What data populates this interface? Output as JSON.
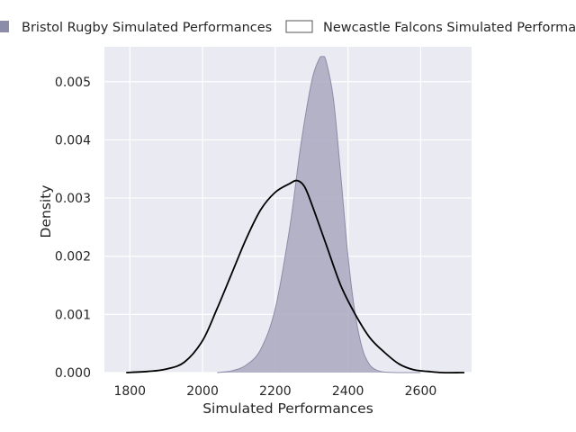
{
  "chart_data": {
    "type": "area",
    "title": "",
    "xlabel": "Simulated Performances",
    "ylabel": "Density",
    "xlim": [
      1730,
      2740
    ],
    "ylim": [
      0,
      0.0056
    ],
    "xticks": [
      1800,
      2000,
      2200,
      2400,
      2600
    ],
    "yticks": [
      0.0,
      0.001,
      0.002,
      0.003,
      0.004,
      0.005
    ],
    "ytick_labels": [
      "0.000",
      "0.001",
      "0.002",
      "0.003",
      "0.004",
      "0.005"
    ],
    "grid": true,
    "legend_position": "top",
    "colors": {
      "plot_background": "#eaeaf2",
      "grid": "#ffffff",
      "bristol_fill": "#a9a8bf",
      "bristol_line": "#8d8ca8",
      "newcastle_line": "#000000"
    },
    "series": [
      {
        "name": "Bristol Rugby Simulated Performances",
        "style": "filled",
        "x": [
          2040,
          2080,
          2120,
          2160,
          2200,
          2240,
          2270,
          2300,
          2320,
          2330,
          2340,
          2360,
          2380,
          2400,
          2420,
          2440,
          2460,
          2480,
          2500,
          2540,
          2600
        ],
        "y": [
          0.0,
          3e-05,
          0.00013,
          0.0004,
          0.0011,
          0.0025,
          0.0039,
          0.005,
          0.00538,
          0.00543,
          0.00535,
          0.0047,
          0.0034,
          0.002,
          0.001,
          0.0004,
          0.00013,
          4e-05,
          1e-05,
          0.0,
          0.0
        ]
      },
      {
        "name": "Newcastle Falcons Simulated Performances",
        "style": "line",
        "x": [
          1790,
          1850,
          1900,
          1950,
          2000,
          2040,
          2080,
          2120,
          2160,
          2200,
          2240,
          2260,
          2280,
          2300,
          2340,
          2380,
          2420,
          2460,
          2500,
          2540,
          2580,
          2620,
          2660,
          2720
        ],
        "y": [
          0.0,
          2e-05,
          6e-05,
          0.00018,
          0.00055,
          0.0011,
          0.0017,
          0.0023,
          0.0028,
          0.0031,
          0.00325,
          0.0033,
          0.0032,
          0.0029,
          0.0022,
          0.0015,
          0.001,
          0.0006,
          0.00035,
          0.00015,
          5e-05,
          2e-05,
          0.0,
          0.0
        ]
      }
    ]
  }
}
